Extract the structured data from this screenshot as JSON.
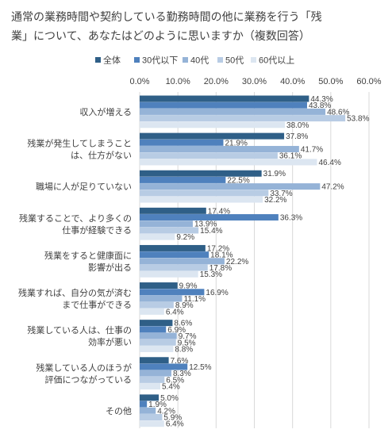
{
  "chart_data": {
    "type": "bar",
    "orientation": "horizontal",
    "title_lines": [
      "通常の業務時間や契約している勤務時間の他に業務を行う「残",
      "業」について、あなたはどのように思いますか（複数回答）"
    ],
    "categories": [
      [
        "収入が増える"
      ],
      [
        "残業が発生してしまうこと",
        "は、仕方がない"
      ],
      [
        "職場に人が足りていない"
      ],
      [
        "残業することで、より多くの",
        "仕事が経験できる"
      ],
      [
        "残業をすると健康面に",
        "影響が出る"
      ],
      [
        "残業すれば、自分の気が済む",
        "まで仕事ができる"
      ],
      [
        "残業している人は、仕事の",
        "効率が悪い"
      ],
      [
        "残業している人のほうが",
        "評価につながっている"
      ],
      [
        "その他"
      ]
    ],
    "series": [
      {
        "name": "全体",
        "color": "#2f5f87",
        "values": [
          44.3,
          37.8,
          31.9,
          17.4,
          17.2,
          9.9,
          8.6,
          7.6,
          5.0
        ]
      },
      {
        "name": "30代以下",
        "color": "#4f81bd",
        "values": [
          43.8,
          21.9,
          22.5,
          36.3,
          18.1,
          16.9,
          6.9,
          12.5,
          1.9
        ]
      },
      {
        "name": "40代",
        "color": "#95b3d7",
        "values": [
          48.6,
          41.7,
          47.2,
          13.9,
          22.2,
          11.1,
          9.7,
          8.3,
          4.2
        ]
      },
      {
        "name": "50代",
        "color": "#b8cce4",
        "values": [
          53.8,
          36.1,
          33.7,
          15.4,
          17.8,
          8.9,
          9.5,
          6.5,
          5.9
        ]
      },
      {
        "name": "60代以上",
        "color": "#dce6f1",
        "values": [
          38.0,
          46.4,
          32.2,
          9.2,
          15.3,
          6.4,
          8.8,
          5.4,
          6.4
        ]
      }
    ],
    "value_labels": [
      [
        "44.3%",
        "37.8%",
        "31.9%",
        "17.4%",
        "17.2%",
        "9.9%",
        "8.6%",
        "7.6%",
        "5.0%"
      ],
      [
        "43.8%",
        "21.9%",
        "22.5%",
        "36.3%",
        "18.1%",
        "16.9%",
        "6.9%",
        "12.5%",
        "1.9%"
      ],
      [
        "48.6%",
        "41.7%",
        "47.2%",
        "13.9%",
        "22.2%",
        "11.1%",
        "9.7%",
        "8.3%",
        "4.2%"
      ],
      [
        "53.8%",
        "36.1%",
        "33.7%",
        "15.4%",
        "17.8%",
        "8.9%",
        "9.5%",
        "6.5%",
        "5.9%"
      ],
      [
        "38.0%",
        "46.4%",
        "32.2%",
        "9.2%",
        "15.3%",
        "6.4%",
        "8.8%",
        "5.4%",
        "6.4%"
      ]
    ],
    "xlim": [
      0,
      60
    ],
    "ticks": [
      0,
      10,
      20,
      30,
      40,
      50,
      60
    ],
    "tick_labels": [
      "0.0%",
      "10.0%",
      "20.0%",
      "30.0%",
      "40.0%",
      "50.0%",
      "60.0%"
    ],
    "grid": true,
    "legend": "top",
    "axis_position": "top"
  }
}
